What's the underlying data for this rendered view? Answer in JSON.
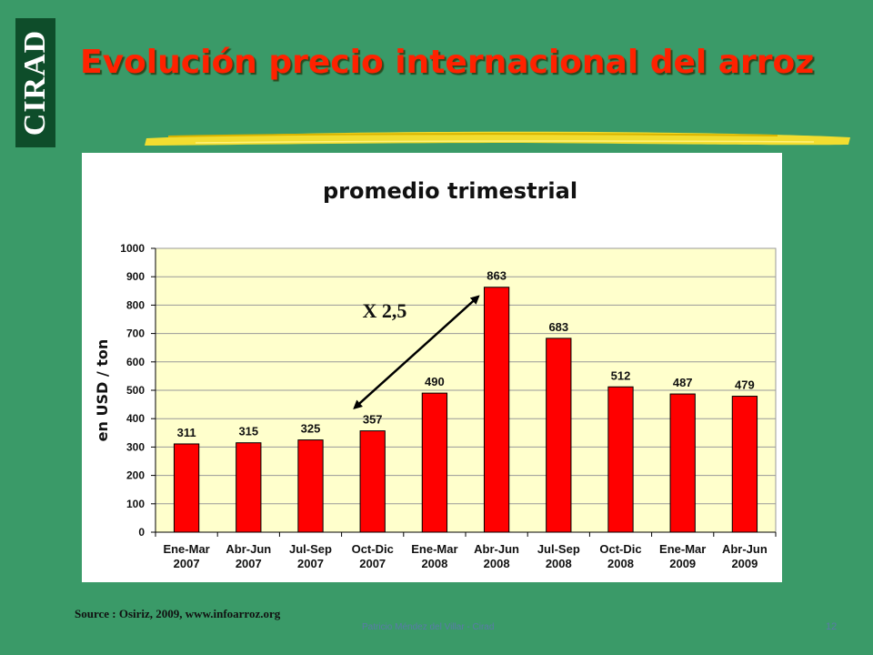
{
  "slide": {
    "logo_text": "CIRAD",
    "title": "Evolución precio internacional del arroz",
    "source": "Source : Osiriz, 2009, www.infoarroz.org",
    "footer": "Patricio Méndez del Villar - Cirad",
    "page_number": "12"
  },
  "colors": {
    "background": "#3a9a68",
    "title": "#ff2200",
    "plot_bg": "#ffffcc",
    "bar": "#ff0000"
  },
  "chart_data": {
    "type": "bar",
    "title": "promedio trimestrial",
    "ylabel": "en USD / ton",
    "xlabel": "",
    "ylim": [
      0,
      1000
    ],
    "yticks": [
      0,
      100,
      200,
      300,
      400,
      500,
      600,
      700,
      800,
      900,
      1000
    ],
    "grid": true,
    "categories": [
      [
        "Ene-Mar",
        "2007"
      ],
      [
        "Abr-Jun",
        "2007"
      ],
      [
        "Jul-Sep",
        "2007"
      ],
      [
        "Oct-Dic",
        "2007"
      ],
      [
        "Ene-Mar",
        "2008"
      ],
      [
        "Abr-Jun",
        "2008"
      ],
      [
        "Jul-Sep",
        "2008"
      ],
      [
        "Oct-Dic",
        "2008"
      ],
      [
        "Ene-Mar",
        "2009"
      ],
      [
        "Abr-Jun",
        "2009"
      ]
    ],
    "values": [
      311,
      315,
      325,
      357,
      490,
      863,
      683,
      512,
      487,
      479
    ],
    "annotation": {
      "text": "X 2,5",
      "from_category": 3,
      "to_category": 5
    }
  }
}
